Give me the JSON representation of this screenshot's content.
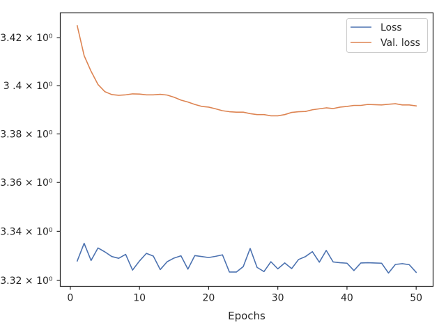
{
  "chart_data": {
    "type": "line",
    "title": "",
    "xlabel": "Epochs",
    "ylabel": "",
    "y_scale": "log",
    "xlim": [
      -1.45,
      52.45
    ],
    "ylim": [
      3.3176,
      3.4304
    ],
    "xticks": [
      0,
      10,
      20,
      30,
      40,
      50
    ],
    "yticks": [
      {
        "value": 3.32,
        "label": "3.32 × 10⁰"
      },
      {
        "value": 3.34,
        "label": "3.34 × 10⁰"
      },
      {
        "value": 3.36,
        "label": "3.36 × 10⁰"
      },
      {
        "value": 3.38,
        "label": "3.38 × 10⁰"
      },
      {
        "value": 3.4,
        "label": "3 .4 × 10⁰"
      },
      {
        "value": 3.42,
        "label": "3.42 × 10⁰"
      }
    ],
    "grid": false,
    "legend_position": "top-right",
    "x": [
      1,
      2,
      3,
      4,
      5,
      6,
      7,
      8,
      9,
      10,
      11,
      12,
      13,
      14,
      15,
      16,
      17,
      18,
      19,
      20,
      21,
      22,
      23,
      24,
      25,
      26,
      27,
      28,
      29,
      30,
      31,
      32,
      33,
      34,
      35,
      36,
      37,
      38,
      39,
      40,
      41,
      42,
      43,
      44,
      45,
      46,
      47,
      48,
      49,
      50
    ],
    "series": [
      {
        "name": "Loss",
        "color": "#4c72b0",
        "values": [
          3.3279,
          3.3351,
          3.3281,
          3.3332,
          3.3316,
          3.3297,
          3.329,
          3.3306,
          3.3242,
          3.3279,
          3.331,
          3.3299,
          3.3244,
          3.3276,
          3.3291,
          3.33,
          3.3246,
          3.3301,
          3.3297,
          3.3293,
          3.3298,
          3.3304,
          3.3234,
          3.3234,
          3.3256,
          3.333,
          3.3253,
          3.3236,
          3.3276,
          3.3247,
          3.3271,
          3.3248,
          3.3285,
          3.3297,
          3.3317,
          3.3274,
          3.3322,
          3.3275,
          3.3272,
          3.327,
          3.324,
          3.3271,
          3.3272,
          3.3271,
          3.327,
          3.323,
          3.3265,
          3.3268,
          3.3264,
          3.3233
        ]
      },
      {
        "name": "Val. loss",
        "color": "#dd8452",
        "values": [
          3.425,
          3.4125,
          3.406,
          3.4005,
          3.3975,
          3.3963,
          3.396,
          3.3962,
          3.3966,
          3.3965,
          3.3962,
          3.3962,
          3.3964,
          3.3961,
          3.3952,
          3.394,
          3.3932,
          3.3922,
          3.3914,
          3.3911,
          3.3904,
          3.3896,
          3.3892,
          3.389,
          3.389,
          3.3884,
          3.388,
          3.388,
          3.3875,
          3.3875,
          3.388,
          3.3889,
          3.3892,
          3.3893,
          3.39,
          3.3904,
          3.3908,
          3.3905,
          3.3911,
          3.3914,
          3.3918,
          3.3918,
          3.3922,
          3.3921,
          3.392,
          3.3923,
          3.3925,
          3.392,
          3.392,
          3.3916
        ]
      }
    ]
  }
}
